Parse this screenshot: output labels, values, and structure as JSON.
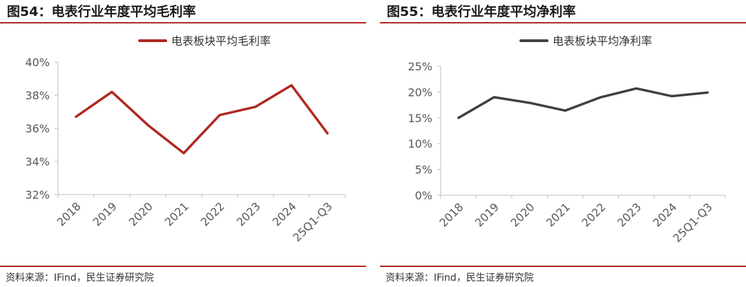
{
  "chart_data": [
    {
      "type": "line",
      "title": "图54：电表行业年度平均毛利率",
      "categories": [
        "2018",
        "2019",
        "2020",
        "2021",
        "2022",
        "2023",
        "2024",
        "25Q1-Q3"
      ],
      "series": [
        {
          "name": "电表板块平均毛利率",
          "values": [
            36.7,
            38.2,
            36.2,
            34.5,
            36.8,
            37.3,
            38.6,
            35.7
          ],
          "color": "#b0281f"
        }
      ],
      "yticks": [
        "40%",
        "38%",
        "36%",
        "34%",
        "32%"
      ],
      "ylim": [
        32,
        40
      ],
      "grid": false,
      "legend_position": "top-center",
      "source": "资料来源：IFind，民生证券研究院"
    },
    {
      "type": "line",
      "title": "图55：电表行业年度平均净利率",
      "categories": [
        "2018",
        "2019",
        "2020",
        "2021",
        "2022",
        "2023",
        "2024",
        "25Q1-Q3"
      ],
      "series": [
        {
          "name": "电表板块平均净利率",
          "values": [
            15.0,
            19.0,
            17.9,
            16.4,
            19.0,
            20.7,
            19.2,
            19.9
          ],
          "color": "#404040"
        }
      ],
      "yticks": [
        "25%",
        "20%",
        "15%",
        "10%",
        "5%",
        "0%"
      ],
      "ylim": [
        0,
        25
      ],
      "grid": false,
      "legend_position": "top-center",
      "source": "资料来源：IFind，民生证券研究院"
    }
  ]
}
